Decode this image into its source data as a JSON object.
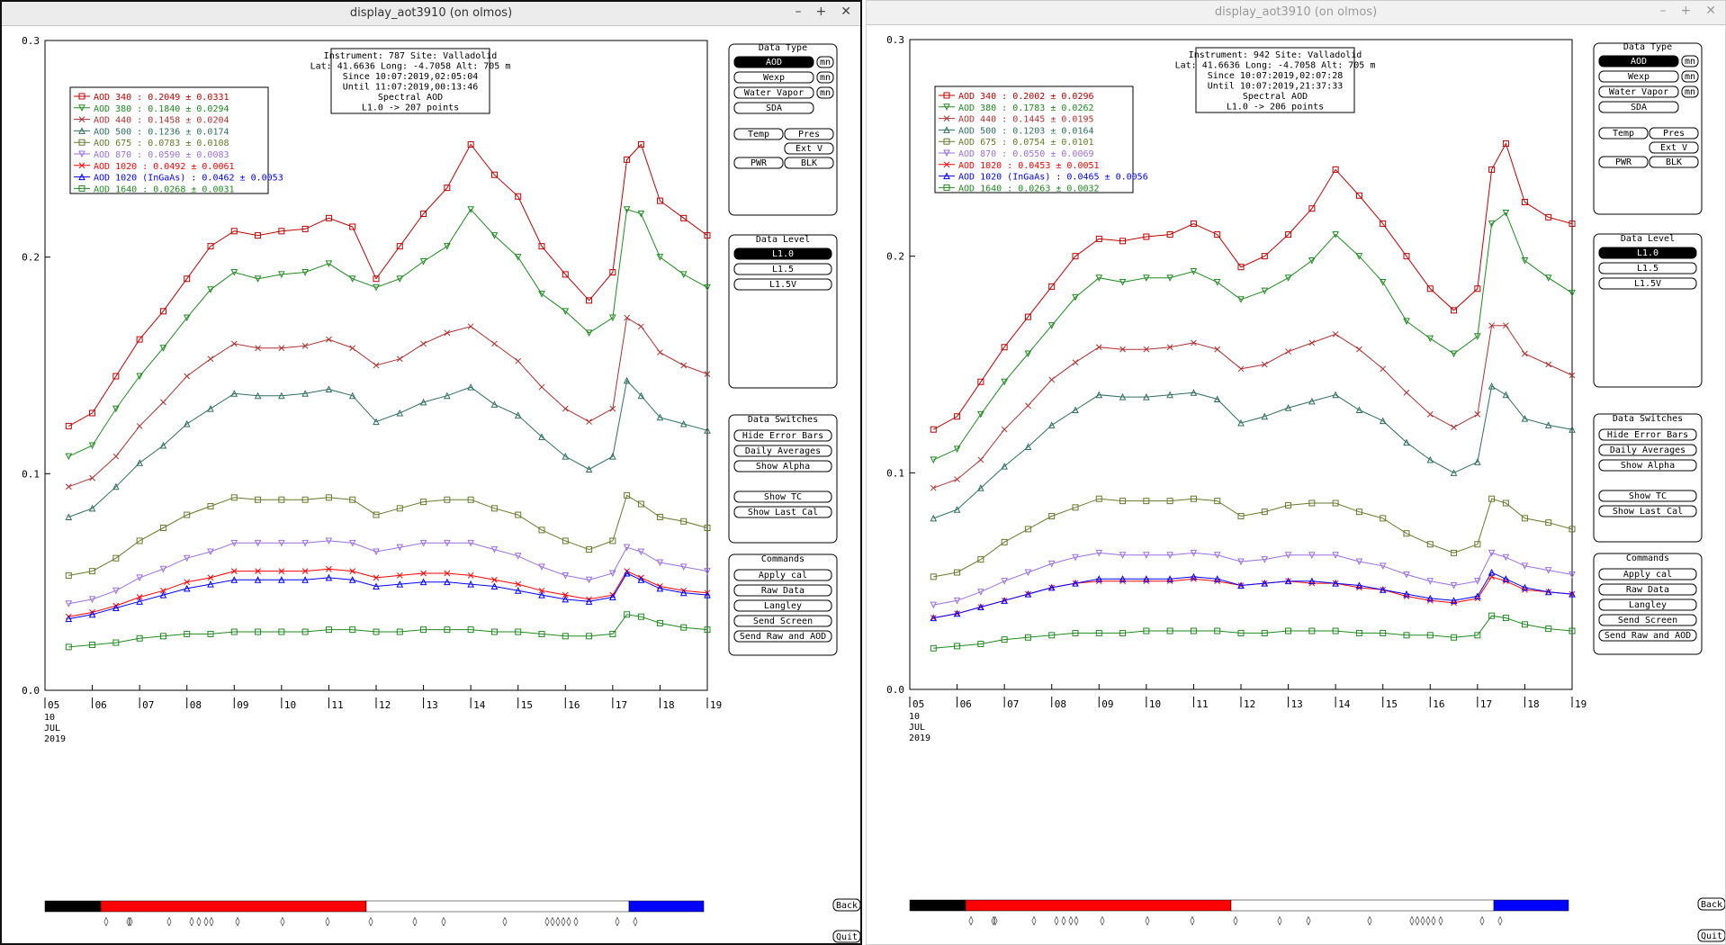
{
  "windows": [
    {
      "title": "display_aot3910 (on olmos)",
      "controls": [
        "–",
        "+",
        "✕"
      ],
      "info": [
        "Instrument: 787 Site: Valladolid",
        "Lat: 41.6636 Long: -4.7058 Alt: 705 m",
        "Since 10:07:2019,02:05:04",
        "Until 11:07:2019,00:13:46",
        "Spectral AOD",
        "L1.0 -> 207 points"
      ],
      "legend": [
        {
          "label": "AOD 340   : 0.2049 ± 0.0331",
          "color": "#c00000"
        },
        {
          "label": "AOD 380   : 0.1840 ± 0.0294",
          "color": "#1f8a1f"
        },
        {
          "label": "AOD 440   : 0.1458 ± 0.0204",
          "color": "#b03030"
        },
        {
          "label": "AOD 500   : 0.1236 ± 0.0174",
          "color": "#2e6e5e"
        },
        {
          "label": "AOD 675   : 0.0783 ± 0.0108",
          "color": "#667a2a"
        },
        {
          "label": "AOD 870   : 0.0590 ± 0.0083",
          "color": "#9a6fe0"
        },
        {
          "label": "AOD 1020  : 0.0492 ± 0.0061",
          "color": "#ff0000"
        },
        {
          "label": "AOD 1020 (InGaAs)  : 0.0462 ± 0.0053",
          "color": "#0000ff"
        },
        {
          "label": "AOD 1640  : 0.0268 ± 0.0031",
          "color": "#1f8a1f"
        }
      ]
    },
    {
      "title": "display_aot3910 (on olmos)",
      "controls": [
        "–",
        "+",
        "✕"
      ],
      "info": [
        "Instrument: 942 Site: Valladolid",
        "Lat: 41.6636 Long: -4.7058 Alt: 705 m",
        "Since 10:07:2019,02:07:28",
        "Until 10:07:2019,21:37:33",
        "Spectral AOD",
        "L1.0 -> 206 points"
      ],
      "legend": [
        {
          "label": "AOD 340   : 0.2002 ± 0.0296",
          "color": "#c00000"
        },
        {
          "label": "AOD 380   : 0.1783 ± 0.0262",
          "color": "#1f8a1f"
        },
        {
          "label": "AOD 440   : 0.1445 ± 0.0195",
          "color": "#b03030"
        },
        {
          "label": "AOD 500   : 0.1203 ± 0.0164",
          "color": "#2e6e5e"
        },
        {
          "label": "AOD 675   : 0.0754 ± 0.0101",
          "color": "#667a2a"
        },
        {
          "label": "AOD 870   : 0.0550 ± 0.0069",
          "color": "#9a6fe0"
        },
        {
          "label": "AOD 1020  : 0.0453 ± 0.0051",
          "color": "#ff0000"
        },
        {
          "label": "AOD 1020 (InGaAs)  : 0.0465 ± 0.0056",
          "color": "#0000ff"
        },
        {
          "label": "AOD 1640  : 0.0263 ± 0.0032",
          "color": "#1f8a1f"
        }
      ]
    }
  ],
  "axis": {
    "y_ticks": [
      "0.0",
      "0.1",
      "0.2",
      "0.3"
    ],
    "x_ticks": [
      "05",
      "06",
      "07",
      "08",
      "09",
      "10",
      "11",
      "12",
      "13",
      "14",
      "15",
      "16",
      "17",
      "18",
      "19"
    ],
    "date_day": "10",
    "date_month": "JUL",
    "date_year": "2019"
  },
  "panels": {
    "data_type": {
      "title": "Data Type",
      "buttons": [
        "AOD",
        "Wexp",
        "Water Vapor",
        "SDA"
      ],
      "mn": "mn",
      "row2": [
        "Temp",
        "Pres"
      ],
      "extv": "Ext V",
      "row3": [
        "PWR",
        "BLK"
      ]
    },
    "data_level": {
      "title": "Data Level",
      "buttons": [
        "L1.0",
        "L1.5",
        "L1.5V"
      ]
    },
    "data_switches": {
      "title": "Data Switches",
      "buttons": [
        "Hide Error Bars",
        "Daily Averages",
        "Show Alpha",
        "Show TC",
        "Show Last Cal"
      ]
    },
    "commands": {
      "title": "Commands",
      "buttons": [
        "Apply cal",
        "Raw Data",
        "Langley",
        "Send Screen",
        "Send Raw and AOD"
      ]
    }
  },
  "side_buttons": {
    "back": "Back",
    "quit": "Quit"
  },
  "colors": {
    "selected_bg": "#000000",
    "bar_red": "#ff0000",
    "bar_blue": "#0000ff",
    "bar_black": "#000000"
  },
  "chart_data": [
    {
      "type": "line",
      "x": [
        5.5,
        6,
        6.5,
        7,
        7.5,
        8,
        8.5,
        9,
        9.5,
        10,
        10.5,
        11,
        11.5,
        12,
        12.5,
        13,
        13.5,
        14,
        14.5,
        15,
        15.5,
        16,
        16.5,
        17,
        17.3,
        17.6,
        18,
        18.5,
        19
      ],
      "series": [
        {
          "name": "AOD 340",
          "values": [
            0.122,
            0.128,
            0.145,
            0.162,
            0.175,
            0.19,
            0.205,
            0.212,
            0.21,
            0.212,
            0.213,
            0.218,
            0.214,
            0.19,
            0.205,
            0.22,
            0.232,
            0.252,
            0.238,
            0.228,
            0.205,
            0.192,
            0.18,
            0.193,
            0.245,
            0.252,
            0.226,
            0.218,
            0.21
          ]
        },
        {
          "name": "AOD 380",
          "values": [
            0.108,
            0.113,
            0.13,
            0.145,
            0.158,
            0.172,
            0.185,
            0.193,
            0.19,
            0.192,
            0.193,
            0.197,
            0.19,
            0.186,
            0.19,
            0.198,
            0.205,
            0.222,
            0.21,
            0.2,
            0.183,
            0.175,
            0.165,
            0.172,
            0.222,
            0.22,
            0.2,
            0.192,
            0.186
          ]
        },
        {
          "name": "AOD 440",
          "values": [
            0.094,
            0.098,
            0.108,
            0.122,
            0.133,
            0.145,
            0.153,
            0.16,
            0.158,
            0.158,
            0.159,
            0.162,
            0.158,
            0.15,
            0.153,
            0.16,
            0.165,
            0.168,
            0.16,
            0.152,
            0.14,
            0.13,
            0.124,
            0.13,
            0.172,
            0.168,
            0.156,
            0.15,
            0.146
          ]
        },
        {
          "name": "AOD 500",
          "values": [
            0.08,
            0.084,
            0.094,
            0.105,
            0.113,
            0.123,
            0.13,
            0.137,
            0.136,
            0.136,
            0.137,
            0.139,
            0.136,
            0.124,
            0.128,
            0.133,
            0.136,
            0.14,
            0.132,
            0.127,
            0.117,
            0.108,
            0.102,
            0.108,
            0.143,
            0.136,
            0.126,
            0.123,
            0.12
          ]
        },
        {
          "name": "AOD 675",
          "values": [
            0.053,
            0.055,
            0.061,
            0.069,
            0.075,
            0.081,
            0.085,
            0.089,
            0.088,
            0.088,
            0.088,
            0.089,
            0.088,
            0.081,
            0.084,
            0.087,
            0.088,
            0.088,
            0.084,
            0.081,
            0.074,
            0.069,
            0.065,
            0.069,
            0.09,
            0.086,
            0.08,
            0.078,
            0.075
          ]
        },
        {
          "name": "AOD 870",
          "values": [
            0.04,
            0.042,
            0.046,
            0.052,
            0.056,
            0.061,
            0.064,
            0.068,
            0.068,
            0.068,
            0.068,
            0.069,
            0.068,
            0.064,
            0.066,
            0.068,
            0.068,
            0.068,
            0.065,
            0.062,
            0.057,
            0.053,
            0.051,
            0.054,
            0.066,
            0.064,
            0.059,
            0.057,
            0.055
          ]
        },
        {
          "name": "AOD 1020",
          "values": [
            0.034,
            0.036,
            0.039,
            0.043,
            0.046,
            0.05,
            0.052,
            0.055,
            0.055,
            0.055,
            0.055,
            0.056,
            0.055,
            0.052,
            0.053,
            0.054,
            0.054,
            0.053,
            0.051,
            0.049,
            0.046,
            0.044,
            0.042,
            0.044,
            0.055,
            0.052,
            0.048,
            0.046,
            0.045
          ]
        },
        {
          "name": "AOD 1020 (InGaAs)",
          "values": [
            0.033,
            0.035,
            0.038,
            0.041,
            0.044,
            0.047,
            0.049,
            0.051,
            0.051,
            0.051,
            0.051,
            0.052,
            0.051,
            0.048,
            0.049,
            0.05,
            0.05,
            0.049,
            0.048,
            0.046,
            0.044,
            0.042,
            0.041,
            0.043,
            0.054,
            0.051,
            0.047,
            0.045,
            0.044
          ]
        },
        {
          "name": "AOD 1640",
          "values": [
            0.02,
            0.021,
            0.022,
            0.024,
            0.025,
            0.026,
            0.026,
            0.027,
            0.027,
            0.027,
            0.027,
            0.028,
            0.028,
            0.027,
            0.027,
            0.028,
            0.028,
            0.028,
            0.027,
            0.027,
            0.026,
            0.025,
            0.025,
            0.026,
            0.035,
            0.034,
            0.031,
            0.029,
            0.028
          ]
        }
      ],
      "ylim": [
        0,
        0.3
      ],
      "xlim": [
        5,
        19
      ]
    },
    {
      "type": "line",
      "x": [
        5.5,
        6,
        6.5,
        7,
        7.5,
        8,
        8.5,
        9,
        9.5,
        10,
        10.5,
        11,
        11.5,
        12,
        12.5,
        13,
        13.5,
        14,
        14.5,
        15,
        15.5,
        16,
        16.5,
        17,
        17.3,
        17.6,
        18,
        18.5,
        19
      ],
      "series": [
        {
          "name": "AOD 340",
          "values": [
            0.12,
            0.126,
            0.142,
            0.158,
            0.172,
            0.186,
            0.2,
            0.208,
            0.207,
            0.209,
            0.21,
            0.215,
            0.21,
            0.195,
            0.2,
            0.21,
            0.222,
            0.24,
            0.228,
            0.215,
            0.2,
            0.185,
            0.175,
            0.185,
            0.24,
            0.252,
            0.225,
            0.218,
            0.215
          ]
        },
        {
          "name": "AOD 380",
          "values": [
            0.106,
            0.111,
            0.127,
            0.142,
            0.155,
            0.168,
            0.181,
            0.19,
            0.188,
            0.19,
            0.19,
            0.193,
            0.188,
            0.18,
            0.184,
            0.19,
            0.198,
            0.21,
            0.2,
            0.188,
            0.17,
            0.162,
            0.155,
            0.163,
            0.215,
            0.22,
            0.198,
            0.19,
            0.183
          ]
        },
        {
          "name": "AOD 440",
          "values": [
            0.093,
            0.097,
            0.106,
            0.12,
            0.131,
            0.143,
            0.151,
            0.158,
            0.157,
            0.157,
            0.158,
            0.16,
            0.157,
            0.148,
            0.15,
            0.156,
            0.16,
            0.164,
            0.157,
            0.148,
            0.137,
            0.127,
            0.121,
            0.127,
            0.168,
            0.168,
            0.155,
            0.15,
            0.145
          ]
        },
        {
          "name": "AOD 500",
          "values": [
            0.079,
            0.083,
            0.093,
            0.103,
            0.112,
            0.122,
            0.129,
            0.136,
            0.135,
            0.135,
            0.136,
            0.137,
            0.134,
            0.123,
            0.126,
            0.13,
            0.133,
            0.136,
            0.129,
            0.124,
            0.114,
            0.106,
            0.1,
            0.105,
            0.14,
            0.136,
            0.125,
            0.122,
            0.12
          ]
        },
        {
          "name": "AOD 675",
          "values": [
            0.052,
            0.054,
            0.06,
            0.068,
            0.074,
            0.08,
            0.084,
            0.088,
            0.087,
            0.087,
            0.087,
            0.088,
            0.087,
            0.08,
            0.082,
            0.085,
            0.086,
            0.086,
            0.082,
            0.079,
            0.072,
            0.067,
            0.063,
            0.067,
            0.088,
            0.086,
            0.079,
            0.077,
            0.074
          ]
        },
        {
          "name": "AOD 870",
          "values": [
            0.039,
            0.041,
            0.045,
            0.05,
            0.054,
            0.058,
            0.061,
            0.063,
            0.062,
            0.062,
            0.062,
            0.063,
            0.062,
            0.059,
            0.06,
            0.062,
            0.062,
            0.062,
            0.059,
            0.057,
            0.053,
            0.05,
            0.048,
            0.05,
            0.063,
            0.061,
            0.057,
            0.055,
            0.053
          ]
        },
        {
          "name": "AOD 1020",
          "values": [
            0.033,
            0.035,
            0.038,
            0.041,
            0.044,
            0.047,
            0.049,
            0.05,
            0.05,
            0.05,
            0.05,
            0.051,
            0.05,
            0.048,
            0.049,
            0.05,
            0.049,
            0.049,
            0.047,
            0.046,
            0.043,
            0.041,
            0.04,
            0.042,
            0.052,
            0.05,
            0.046,
            0.045,
            0.044
          ]
        },
        {
          "name": "AOD 1020 (InGaAs)",
          "values": [
            0.033,
            0.035,
            0.038,
            0.041,
            0.044,
            0.047,
            0.049,
            0.051,
            0.051,
            0.051,
            0.051,
            0.052,
            0.051,
            0.048,
            0.049,
            0.05,
            0.05,
            0.049,
            0.048,
            0.046,
            0.044,
            0.042,
            0.041,
            0.043,
            0.054,
            0.051,
            0.047,
            0.045,
            0.044
          ]
        },
        {
          "name": "AOD 1640",
          "values": [
            0.019,
            0.02,
            0.021,
            0.023,
            0.024,
            0.025,
            0.026,
            0.026,
            0.026,
            0.027,
            0.027,
            0.027,
            0.027,
            0.026,
            0.026,
            0.027,
            0.027,
            0.027,
            0.026,
            0.026,
            0.025,
            0.025,
            0.024,
            0.025,
            0.034,
            0.033,
            0.03,
            0.028,
            0.027
          ]
        }
      ],
      "ylim": [
        0,
        0.3
      ],
      "xlim": [
        5,
        19
      ]
    }
  ]
}
